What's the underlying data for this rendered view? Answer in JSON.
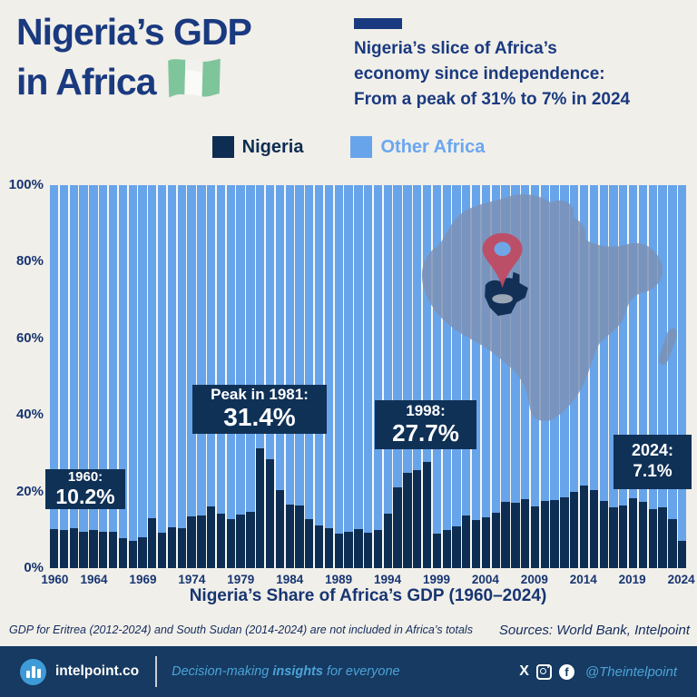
{
  "header": {
    "title_line1": "Nigeria’s GDP",
    "title_line2": "in Africa",
    "subtitle_line1": "Nigeria’s slice of Africa’s",
    "subtitle_line2": "economy since independence:",
    "subtitle_line3": "From a peak of 31% to 7% in 2024",
    "accent_color": "#1a3a80"
  },
  "legend": {
    "items": [
      {
        "label": "Nigeria",
        "color": "#0e2d52"
      },
      {
        "label": "Other Africa",
        "color": "#68a4ea"
      }
    ]
  },
  "chart_data": {
    "type": "bar",
    "stacked": true,
    "title": "Nigeria’s Share of Africa’s GDP (1960–2024)",
    "x": [
      1960,
      1961,
      1962,
      1963,
      1964,
      1965,
      1966,
      1967,
      1968,
      1969,
      1970,
      1971,
      1972,
      1973,
      1974,
      1975,
      1976,
      1977,
      1978,
      1979,
      1980,
      1981,
      1982,
      1983,
      1984,
      1985,
      1986,
      1987,
      1988,
      1989,
      1990,
      1991,
      1992,
      1993,
      1994,
      1995,
      1996,
      1997,
      1998,
      1999,
      2000,
      2001,
      2002,
      2003,
      2004,
      2005,
      2006,
      2007,
      2008,
      2009,
      2010,
      2011,
      2012,
      2013,
      2014,
      2015,
      2016,
      2017,
      2018,
      2019,
      2020,
      2021,
      2022,
      2023,
      2024
    ],
    "series": [
      {
        "name": "Nigeria",
        "color": "#0e2d52",
        "values": [
          10.2,
          10.0,
          10.4,
          9.4,
          10.0,
          9.6,
          9.6,
          7.8,
          7.1,
          8.0,
          13.1,
          9.2,
          10.7,
          10.5,
          13.4,
          13.7,
          16.0,
          14.2,
          12.9,
          14.1,
          14.8,
          31.4,
          28.4,
          20.4,
          16.6,
          16.3,
          12.8,
          11.1,
          10.4,
          8.9,
          9.6,
          10.1,
          9.2,
          10.0,
          14.2,
          21.0,
          24.9,
          25.5,
          27.7,
          8.9,
          9.9,
          10.9,
          13.7,
          12.5,
          13.3,
          14.5,
          17.2,
          17.1,
          18.0,
          16.2,
          17.5,
          17.8,
          18.4,
          20.0,
          21.6,
          20.4,
          17.6,
          15.8,
          16.3,
          18.2,
          17.2,
          15.5,
          15.8,
          12.9,
          7.1
        ]
      },
      {
        "name": "Other Africa",
        "color": "#68a4ea",
        "complement_to_100_of": "Nigeria"
      }
    ],
    "ylim": [
      0,
      100
    ],
    "y_ticks": [
      "0%",
      "20%",
      "40%",
      "60%",
      "80%",
      "100%"
    ],
    "x_ticks": [
      1960,
      1964,
      1969,
      1974,
      1979,
      1984,
      1989,
      1994,
      1999,
      2004,
      2009,
      2014,
      2019,
      2024
    ],
    "grid": "vertical white separators between bars, no horizontal gridlines",
    "legend_position": "top center",
    "annotations": [
      {
        "id": "1960",
        "line1": "1960:",
        "line2": "10.2%"
      },
      {
        "id": "1981",
        "line1": "Peak in 1981:",
        "line2": "31.4%"
      },
      {
        "id": "1998",
        "line1": "1998:",
        "line2": "27.7%"
      },
      {
        "id": "2024",
        "line1": "2024:",
        "line2": "7.1%"
      }
    ],
    "overlay": {
      "map": "africa-silhouette",
      "map_color": "#7c91b5",
      "pin_color": "#c04b63",
      "highlight_country": "Nigeria"
    }
  },
  "footnotes": {
    "note": "GDP for Eritrea (2012-2024) and South Sudan (2014-2024) are not included in Africa’s totals",
    "sources": "Sources: World Bank, Intelpoint"
  },
  "footer": {
    "brand": "intelpoint.co",
    "tagline_pre": "Decision-making ",
    "tagline_bold": "insights",
    "tagline_post": " for everyone",
    "handle": "@Theintelpoint",
    "bg_color": "#163a61",
    "logo_color": "#3f9bd7"
  }
}
